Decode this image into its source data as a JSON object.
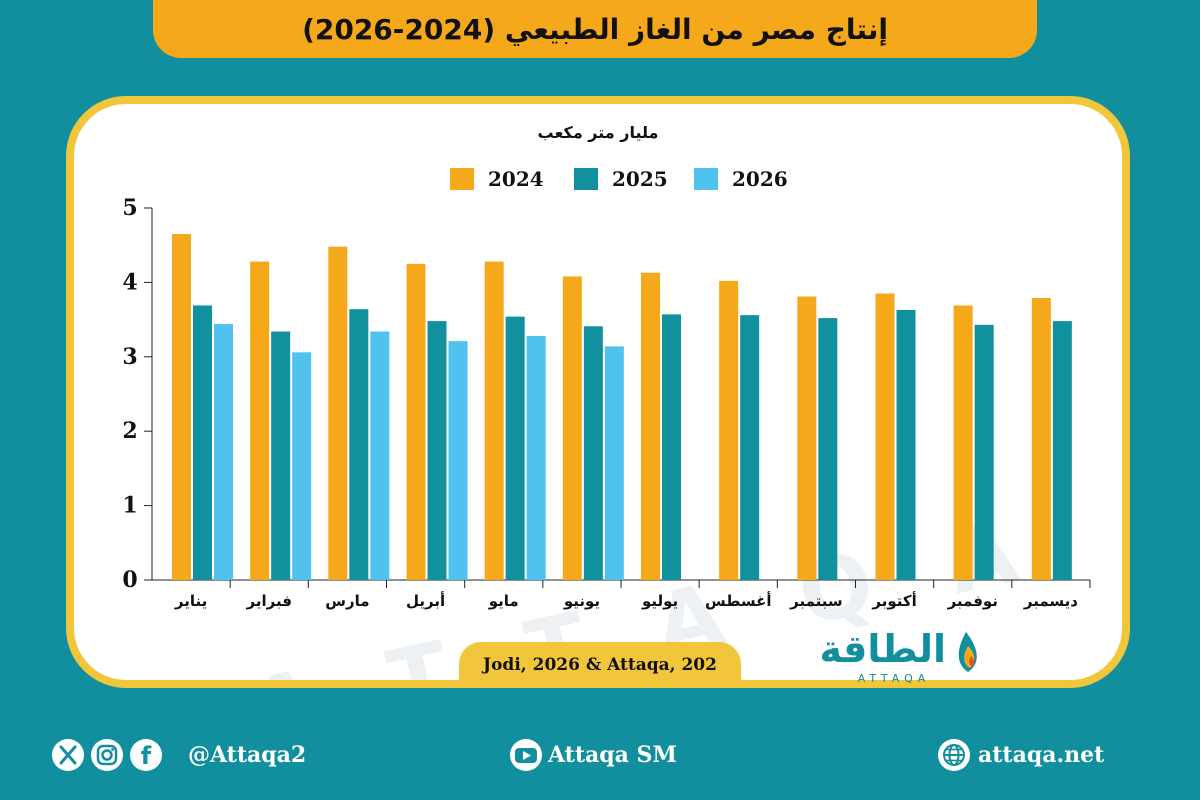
{
  "title": "إنتاج مصر من الغاز الطبيعي (2024-2026)",
  "source": "Jodi, 2026 & Attaqa, 202",
  "brand": {
    "arabic": "الطاقة",
    "latin": "ATTAQA"
  },
  "watermark": "ATTAQA",
  "footer": {
    "social_handle": "@Attaqa2",
    "youtube": "Attaqa SM",
    "website": "attaqa.net"
  },
  "colors": {
    "background": "#128f9e",
    "accent": "#f6a81b",
    "card_border": "#f2c63b",
    "series_2024": "#f6a81b",
    "series_2025": "#11909e",
    "series_2026": "#4fc3ee"
  },
  "chart_data": {
    "type": "bar",
    "title": "",
    "ylabel": "مليار متر مكعب",
    "xlabel": "",
    "ylim": [
      0,
      5
    ],
    "yticks": [
      "0",
      "1",
      "2",
      "3",
      "4",
      "5"
    ],
    "legend_position": "top-center",
    "grid": false,
    "categories": [
      "يناير",
      "فبراير",
      "مارس",
      "أبريل",
      "مايو",
      "يونيو",
      "يوليو",
      "أغسطس",
      "سبتمبر",
      "أكتوبر",
      "نوفمبر",
      "ديسمبر"
    ],
    "series": [
      {
        "name": "2024",
        "color": "#f6a81b",
        "values": [
          4.65,
          4.28,
          4.48,
          4.25,
          4.28,
          4.08,
          4.13,
          4.02,
          3.81,
          3.85,
          3.69,
          3.79
        ]
      },
      {
        "name": "2025",
        "color": "#11909e",
        "values": [
          3.69,
          3.34,
          3.64,
          3.48,
          3.54,
          3.41,
          3.57,
          3.56,
          3.52,
          3.63,
          3.43,
          3.48
        ]
      },
      {
        "name": "2026",
        "color": "#4fc3ee",
        "values": [
          3.44,
          3.06,
          3.34,
          3.21,
          3.28,
          3.14,
          null,
          null,
          null,
          null,
          null,
          null
        ]
      }
    ]
  }
}
